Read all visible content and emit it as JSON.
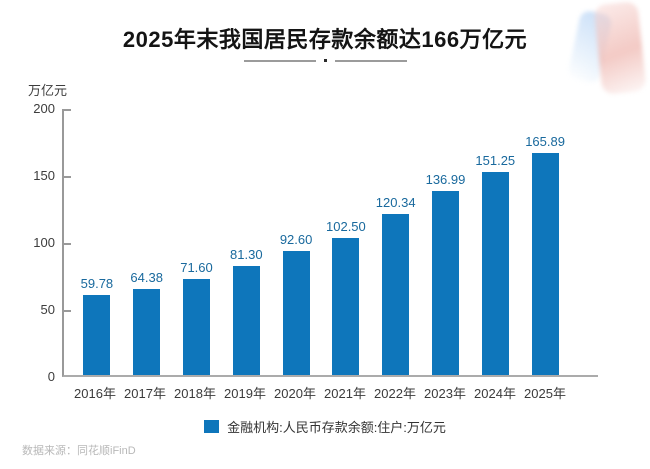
{
  "header": {
    "title": "2025年末我国居民存款余额达166万亿元"
  },
  "chart_data": {
    "type": "bar",
    "title": "2025年末我国居民存款余额达166万亿元",
    "categories": [
      "2016年",
      "2017年",
      "2018年",
      "2019年",
      "2020年",
      "2021年",
      "2022年",
      "2023年",
      "2024年",
      "2025年"
    ],
    "values": [
      59.78,
      64.38,
      71.6,
      81.3,
      92.6,
      102.5,
      120.34,
      136.99,
      151.25,
      165.89
    ],
    "ylabel": "万亿元",
    "xlabel": "",
    "ylim": [
      0,
      200
    ],
    "yticks": [
      0,
      50,
      100,
      150,
      200
    ],
    "grid": false,
    "legend": [
      "金融机构:人民币存款余额:住户:万亿元"
    ],
    "legend_position": "bottom",
    "bar_color": "#0E76BB",
    "value_label_color": "#19699D",
    "value_label_decimals": 2
  },
  "footer": {
    "source": "数据来源：同花顺iFinD"
  },
  "watermark": {
    "icon": "ths-ifind-logo-watermark"
  }
}
